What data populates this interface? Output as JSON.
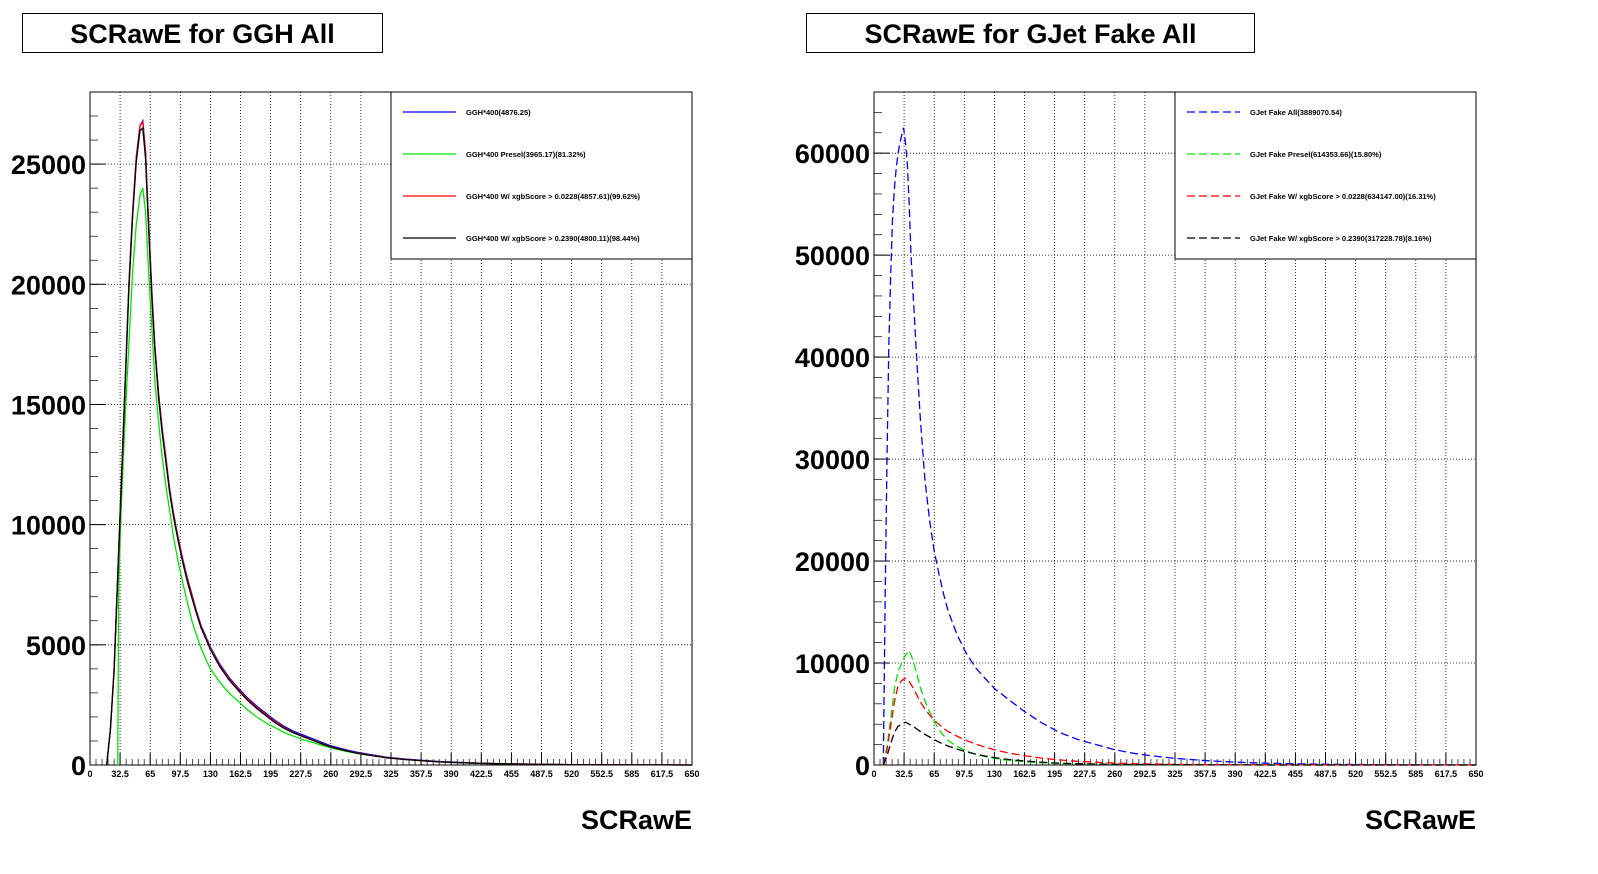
{
  "chart_data": [
    {
      "type": "line",
      "title": "SCRawE for GGH All",
      "xlabel": "SCRawE",
      "ylabel": "",
      "xlim": [
        0,
        650
      ],
      "ylim": [
        0,
        28000
      ],
      "xticks": [
        "0",
        "32.5",
        "65",
        "97.5",
        "130",
        "162.5",
        "195",
        "227.5",
        "260",
        "292.5",
        "325",
        "357.5",
        "390",
        "422.5",
        "455",
        "487.5",
        "520",
        "552.5",
        "585",
        "617.5",
        "650"
      ],
      "yticks": [
        "0",
        "5000",
        "10000",
        "15000",
        "20000",
        "25000"
      ],
      "ytick_values": [
        0,
        5000,
        10000,
        15000,
        20000,
        25000
      ],
      "grid": true,
      "legend_position": "top-right",
      "series": [
        {
          "name": "GGH*400(4876.25)",
          "color": "#0000ff",
          "dashed": false,
          "x": [
            18,
            22,
            26,
            30,
            34,
            38,
            42,
            46,
            50,
            54,
            57,
            60,
            62,
            64,
            67,
            70,
            74,
            78,
            82,
            86,
            90,
            95,
            100,
            105,
            110,
            115,
            120,
            125,
            130,
            140,
            150,
            160,
            170,
            180,
            190,
            200,
            210,
            220,
            230,
            240,
            250,
            260,
            270,
            280,
            290,
            300,
            320,
            340,
            360,
            380,
            400,
            420,
            440,
            460,
            480,
            500,
            520,
            540,
            560,
            580,
            600,
            620,
            650
          ],
          "y": [
            0,
            1500,
            4000,
            8000,
            12000,
            16000,
            20000,
            23000,
            25300,
            26600,
            26800,
            25500,
            23700,
            22000,
            19500,
            17500,
            15500,
            14000,
            12800,
            11500,
            10500,
            9500,
            8600,
            7800,
            7100,
            6400,
            5800,
            5350,
            4900,
            4200,
            3650,
            3200,
            2800,
            2450,
            2150,
            1850,
            1600,
            1400,
            1250,
            1100,
            950,
            800,
            700,
            600,
            520,
            450,
            330,
            250,
            190,
            140,
            110,
            80,
            60,
            45,
            35,
            25,
            18,
            13,
            10,
            7,
            5,
            3,
            2
          ]
        },
        {
          "name": "GGH*400 Presel(3965.17)(81.32%)",
          "color": "#00e600",
          "dashed": false,
          "x": [
            30,
            31,
            34,
            38,
            42,
            46,
            50,
            54,
            57,
            60,
            62,
            64,
            67,
            70,
            74,
            78,
            82,
            86,
            90,
            95,
            100,
            105,
            110,
            115,
            120,
            125,
            130,
            140,
            150,
            160,
            170,
            180,
            190,
            200,
            210,
            220,
            230,
            240,
            250,
            260,
            270,
            280,
            290,
            300,
            320,
            340,
            360,
            380,
            400,
            420,
            440,
            460,
            480,
            500,
            520,
            540,
            560,
            580,
            600,
            620,
            650
          ],
          "y": [
            0,
            7500,
            11000,
            14500,
            17500,
            20500,
            22500,
            23700,
            24000,
            23000,
            21500,
            20000,
            18000,
            16000,
            14300,
            12800,
            11600,
            10600,
            9500,
            8500,
            7600,
            6800,
            6000,
            5400,
            4850,
            4400,
            4000,
            3450,
            3000,
            2650,
            2300,
            2000,
            1750,
            1550,
            1350,
            1200,
            1050,
            950,
            820,
            720,
            620,
            540,
            470,
            410,
            310,
            230,
            170,
            125,
            95,
            70,
            52,
            40,
            30,
            22,
            16,
            12,
            9,
            6,
            4,
            3,
            2
          ]
        },
        {
          "name": "GGH*400 W/ xgbScore > 0.0228(4857.61)(99.62%)",
          "color": "#ff0000",
          "dashed": false,
          "x": [
            18,
            22,
            26,
            30,
            34,
            38,
            42,
            46,
            50,
            54,
            57,
            60,
            62,
            64,
            67,
            70,
            74,
            78,
            82,
            86,
            90,
            95,
            100,
            105,
            110,
            115,
            120,
            125,
            130,
            140,
            150,
            160,
            170,
            180,
            190,
            200,
            210,
            220,
            230,
            240,
            250,
            260,
            270,
            280,
            290,
            300,
            320,
            340,
            360,
            380,
            400,
            420,
            440,
            460,
            480,
            500,
            520,
            540,
            560,
            580,
            600,
            620,
            650
          ],
          "y": [
            0,
            1500,
            4000,
            8000,
            12000,
            16000,
            20000,
            23000,
            25300,
            26600,
            26750,
            25450,
            23650,
            21950,
            19450,
            17450,
            15450,
            13950,
            12750,
            11450,
            10450,
            9450,
            8550,
            7750,
            7050,
            6350,
            5750,
            5300,
            4850,
            4150,
            3600,
            3150,
            2750,
            2400,
            2100,
            1800,
            1550,
            1350,
            1200,
            1050,
            900,
            760,
            660,
            570,
            490,
            425,
            310,
            235,
            175,
            130,
            100,
            75,
            55,
            42,
            32,
            23,
            17,
            12,
            9,
            6,
            4,
            3,
            2
          ]
        },
        {
          "name": "GGH*400 W/ xgbScore > 0.2390(4800.11)(98.44%)",
          "color": "#000000",
          "dashed": false,
          "x": [
            18,
            22,
            26,
            30,
            34,
            38,
            42,
            46,
            50,
            54,
            57,
            60,
            62,
            64,
            67,
            70,
            74,
            78,
            82,
            86,
            90,
            95,
            100,
            105,
            110,
            115,
            120,
            125,
            130,
            140,
            150,
            160,
            170,
            180,
            190,
            200,
            210,
            220,
            230,
            240,
            250,
            260,
            270,
            280,
            290,
            300,
            320,
            340,
            360,
            380,
            400,
            420,
            440,
            460,
            480,
            500,
            520,
            540,
            560,
            580,
            600,
            620,
            650
          ],
          "y": [
            0,
            1450,
            3900,
            7850,
            11800,
            15800,
            19800,
            22800,
            25100,
            26400,
            26500,
            25200,
            23400,
            21700,
            19200,
            17300,
            15300,
            13800,
            12600,
            11350,
            10350,
            9350,
            8450,
            7650,
            6950,
            6300,
            5700,
            5250,
            4800,
            4100,
            3550,
            3100,
            2700,
            2350,
            2050,
            1750,
            1520,
            1330,
            1180,
            1030,
            880,
            750,
            650,
            560,
            480,
            415,
            300,
            228,
            170,
            126,
            96,
            72,
            53,
            40,
            30,
            22,
            16,
            11,
            8,
            6,
            4,
            3,
            2
          ]
        }
      ]
    },
    {
      "type": "line",
      "title": "SCRawE for GJet Fake All",
      "xlabel": "SCRawE",
      "ylabel": "",
      "xlim": [
        0,
        650
      ],
      "ylim": [
        0,
        66000
      ],
      "xticks": [
        "0",
        "32.5",
        "65",
        "97.5",
        "130",
        "162.5",
        "195",
        "227.5",
        "260",
        "292.5",
        "325",
        "357.5",
        "390",
        "422.5",
        "455",
        "487.5",
        "520",
        "552.5",
        "585",
        "617.5",
        "650"
      ],
      "yticks": [
        "0",
        "10000",
        "20000",
        "30000",
        "40000",
        "50000",
        "60000"
      ],
      "ytick_values": [
        0,
        10000,
        20000,
        30000,
        40000,
        50000,
        60000
      ],
      "grid": true,
      "legend_position": "top-right",
      "series": [
        {
          "name": "GJet Fake All(3889070.54)",
          "color": "#0000ff",
          "dashed": true,
          "x": [
            10,
            12,
            14,
            16,
            18,
            20,
            22,
            24,
            26,
            28,
            30,
            32,
            34,
            36,
            38,
            40,
            43,
            46,
            50,
            55,
            60,
            65,
            70,
            75,
            80,
            90,
            100,
            110,
            120,
            130,
            140,
            150,
            160,
            170,
            180,
            190,
            200,
            220,
            240,
            260,
            280,
            300,
            320,
            340,
            360,
            380,
            400,
            420,
            440,
            460,
            480,
            500,
            520,
            540,
            560,
            580,
            600,
            620,
            650
          ],
          "y": [
            0,
            16000,
            30000,
            41000,
            48000,
            53500,
            56500,
            58500,
            60000,
            61000,
            61800,
            62500,
            61000,
            59000,
            55000,
            50000,
            45000,
            40000,
            34000,
            28000,
            24000,
            21000,
            18800,
            16800,
            15100,
            12700,
            10900,
            9500,
            8500,
            7500,
            6800,
            6100,
            5400,
            4800,
            4200,
            3700,
            3200,
            2500,
            2000,
            1500,
            1150,
            900,
            700,
            550,
            420,
            320,
            250,
            190,
            150,
            110,
            85,
            65,
            50,
            38,
            28,
            20,
            14,
            10,
            7
          ]
        },
        {
          "name": "GJet Fake Presel(614353.66)(15.80%)",
          "color": "#00e600",
          "dashed": true,
          "x": [
            10,
            14,
            18,
            22,
            26,
            30,
            34,
            38,
            40,
            42,
            46,
            50,
            55,
            60,
            65,
            70,
            75,
            80,
            90,
            100,
            110,
            120,
            130,
            140,
            150,
            160,
            170,
            180,
            190,
            200,
            220,
            240,
            260,
            280,
            300,
            320,
            340,
            360,
            380,
            400,
            420,
            440,
            460,
            480,
            500,
            520,
            540,
            560,
            580,
            600,
            620,
            650
          ],
          "y": [
            0,
            1800,
            4500,
            7500,
            9200,
            10000,
            10800,
            11200,
            10800,
            10300,
            9000,
            7600,
            6300,
            5200,
            4300,
            3500,
            2900,
            2400,
            1800,
            1350,
            1050,
            820,
            650,
            520,
            420,
            340,
            280,
            230,
            190,
            150,
            105,
            75,
            55,
            40,
            30,
            22,
            16,
            12,
            9,
            7,
            5,
            4,
            3,
            2,
            2,
            1,
            1,
            1,
            0,
            0,
            0,
            0
          ]
        },
        {
          "name": "GJet Fake W/ xgbScore > 0.0228(634147.00)(16.31%)",
          "color": "#ff0000",
          "dashed": true,
          "x": [
            10,
            14,
            18,
            22,
            26,
            30,
            34,
            38,
            42,
            46,
            50,
            55,
            60,
            65,
            70,
            75,
            80,
            90,
            100,
            110,
            120,
            130,
            140,
            150,
            160,
            170,
            180,
            190,
            200,
            220,
            240,
            260,
            280,
            300,
            320,
            340,
            360,
            380,
            400,
            420,
            440,
            460,
            480,
            500,
            520,
            540,
            560,
            580,
            600,
            620,
            650
          ],
          "y": [
            0,
            1500,
            3800,
            6200,
            7800,
            8300,
            8500,
            8200,
            7600,
            6900,
            6200,
            5500,
            4900,
            4400,
            4000,
            3600,
            3300,
            2800,
            2400,
            2050,
            1750,
            1500,
            1280,
            1100,
            950,
            810,
            690,
            590,
            500,
            360,
            260,
            190,
            140,
            100,
            72,
            52,
            38,
            28,
            20,
            15,
            11,
            8,
            6,
            4,
            3,
            2,
            2,
            1,
            1,
            1,
            0
          ]
        },
        {
          "name": "GJet Fake W/ xgbScore > 0.2390(317228.78)(8.16%)",
          "color": "#000000",
          "dashed": true,
          "x": [
            10,
            14,
            18,
            22,
            26,
            30,
            34,
            38,
            42,
            46,
            50,
            55,
            60,
            65,
            70,
            75,
            80,
            90,
            100,
            110,
            120,
            130,
            140,
            150,
            160,
            170,
            180,
            190,
            200,
            220,
            240,
            260,
            280,
            300,
            320,
            340,
            360,
            380,
            400,
            420,
            440,
            460,
            480,
            500,
            520,
            540,
            560,
            580,
            600,
            620,
            650
          ],
          "y": [
            0,
            900,
            2100,
            3200,
            3800,
            4000,
            4200,
            4000,
            3800,
            3550,
            3300,
            3000,
            2750,
            2500,
            2250,
            2050,
            1850,
            1550,
            1280,
            1060,
            880,
            730,
            600,
            500,
            410,
            340,
            280,
            230,
            190,
            130,
            90,
            62,
            43,
            30,
            21,
            15,
            10,
            7,
            5,
            4,
            3,
            2,
            2,
            1,
            1,
            1,
            0,
            0,
            0,
            0,
            0
          ]
        }
      ]
    }
  ]
}
